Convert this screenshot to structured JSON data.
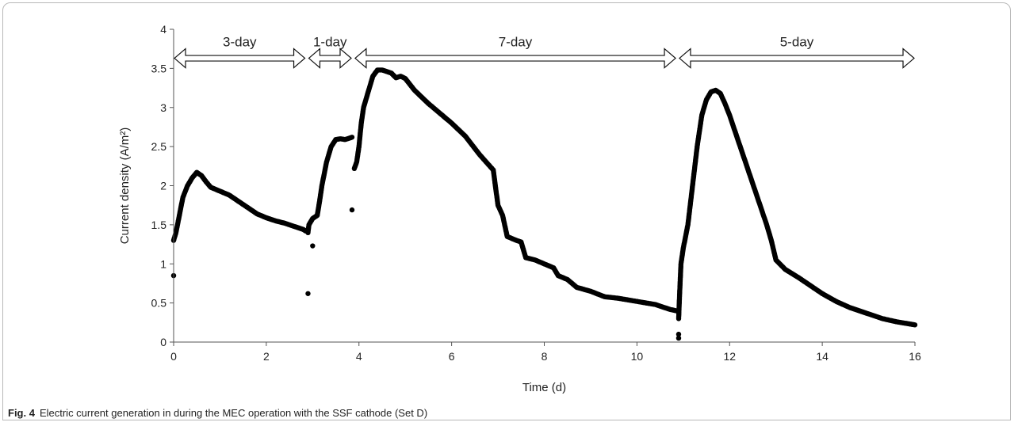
{
  "caption": {
    "label": "Fig. 4",
    "text": "Electric current generation in during the MEC operation with the SSF cathode (Set D)"
  },
  "chart_data": {
    "type": "scatter",
    "xlabel": "Time (d)",
    "ylabel": "Current density (A/m²)",
    "xlim": [
      0,
      16
    ],
    "ylim": [
      0,
      4
    ],
    "xticks": [
      0,
      2,
      4,
      6,
      8,
      10,
      12,
      14,
      16
    ],
    "yticks": [
      0,
      0.5,
      1,
      1.5,
      2,
      2.5,
      3,
      3.5,
      4
    ],
    "grid": false,
    "marker_color": "#000000",
    "periods": [
      {
        "label": "3-day",
        "start": 0.0,
        "end": 2.85
      },
      {
        "label": "1-day",
        "start": 2.9,
        "end": 3.85
      },
      {
        "label": "7-day",
        "start": 3.9,
        "end": 10.85
      },
      {
        "label": "5-day",
        "start": 10.9,
        "end": 16.0
      }
    ],
    "outliers": [
      {
        "x": 0.0,
        "y": 0.85
      },
      {
        "x": 2.9,
        "y": 0.62
      },
      {
        "x": 3.0,
        "y": 1.23
      },
      {
        "x": 3.85,
        "y": 1.69
      },
      {
        "x": 10.9,
        "y": 0.05
      },
      {
        "x": 10.9,
        "y": 0.1
      }
    ],
    "segments": [
      {
        "points": [
          [
            0.0,
            1.3
          ],
          [
            0.05,
            1.4
          ],
          [
            0.1,
            1.55
          ],
          [
            0.2,
            1.85
          ],
          [
            0.3,
            2.0
          ],
          [
            0.4,
            2.1
          ],
          [
            0.5,
            2.17
          ],
          [
            0.6,
            2.13
          ],
          [
            0.7,
            2.05
          ],
          [
            0.8,
            1.98
          ],
          [
            1.0,
            1.93
          ],
          [
            1.2,
            1.88
          ],
          [
            1.4,
            1.8
          ],
          [
            1.6,
            1.72
          ],
          [
            1.8,
            1.64
          ],
          [
            2.0,
            1.59
          ],
          [
            2.2,
            1.55
          ],
          [
            2.4,
            1.52
          ],
          [
            2.6,
            1.48
          ],
          [
            2.8,
            1.44
          ],
          [
            2.85,
            1.42
          ]
        ]
      },
      {
        "points": [
          [
            2.9,
            1.4
          ],
          [
            2.92,
            1.5
          ],
          [
            3.0,
            1.58
          ],
          [
            3.1,
            1.62
          ],
          [
            3.15,
            1.8
          ],
          [
            3.2,
            2.0
          ],
          [
            3.3,
            2.3
          ],
          [
            3.4,
            2.5
          ],
          [
            3.5,
            2.59
          ],
          [
            3.6,
            2.6
          ],
          [
            3.7,
            2.59
          ],
          [
            3.8,
            2.61
          ],
          [
            3.85,
            2.62
          ]
        ]
      },
      {
        "points": [
          [
            3.9,
            2.22
          ],
          [
            3.95,
            2.3
          ],
          [
            4.0,
            2.5
          ],
          [
            4.05,
            2.8
          ],
          [
            4.1,
            3.0
          ],
          [
            4.2,
            3.2
          ],
          [
            4.3,
            3.4
          ],
          [
            4.4,
            3.48
          ],
          [
            4.5,
            3.48
          ],
          [
            4.7,
            3.44
          ],
          [
            4.8,
            3.38
          ],
          [
            4.9,
            3.4
          ],
          [
            5.0,
            3.37
          ],
          [
            5.2,
            3.22
          ],
          [
            5.5,
            3.05
          ],
          [
            6.0,
            2.8
          ],
          [
            6.3,
            2.63
          ],
          [
            6.6,
            2.4
          ],
          [
            6.9,
            2.2
          ],
          [
            7.0,
            1.75
          ],
          [
            7.1,
            1.62
          ],
          [
            7.2,
            1.35
          ],
          [
            7.4,
            1.3
          ],
          [
            7.5,
            1.28
          ],
          [
            7.6,
            1.08
          ],
          [
            7.8,
            1.05
          ],
          [
            8.0,
            1.0
          ],
          [
            8.2,
            0.95
          ],
          [
            8.3,
            0.85
          ],
          [
            8.5,
            0.8
          ],
          [
            8.7,
            0.7
          ],
          [
            9.0,
            0.65
          ],
          [
            9.3,
            0.58
          ],
          [
            9.6,
            0.56
          ],
          [
            10.0,
            0.52
          ],
          [
            10.4,
            0.48
          ],
          [
            10.7,
            0.42
          ],
          [
            10.85,
            0.4
          ]
        ]
      },
      {
        "points": [
          [
            10.9,
            0.3
          ],
          [
            10.92,
            0.6
          ],
          [
            10.95,
            1.0
          ],
          [
            11.0,
            1.2
          ],
          [
            11.1,
            1.5
          ],
          [
            11.2,
            2.0
          ],
          [
            11.3,
            2.5
          ],
          [
            11.4,
            2.9
          ],
          [
            11.5,
            3.1
          ],
          [
            11.6,
            3.2
          ],
          [
            11.7,
            3.22
          ],
          [
            11.8,
            3.18
          ],
          [
            11.9,
            3.05
          ],
          [
            12.0,
            2.9
          ],
          [
            12.2,
            2.55
          ],
          [
            12.4,
            2.2
          ],
          [
            12.6,
            1.85
          ],
          [
            12.8,
            1.5
          ],
          [
            12.9,
            1.3
          ],
          [
            13.0,
            1.05
          ],
          [
            13.2,
            0.93
          ],
          [
            13.5,
            0.82
          ],
          [
            13.8,
            0.7
          ],
          [
            14.0,
            0.62
          ],
          [
            14.3,
            0.52
          ],
          [
            14.6,
            0.44
          ],
          [
            15.0,
            0.36
          ],
          [
            15.3,
            0.3
          ],
          [
            15.6,
            0.26
          ],
          [
            15.9,
            0.23
          ],
          [
            16.0,
            0.22
          ]
        ]
      }
    ]
  }
}
